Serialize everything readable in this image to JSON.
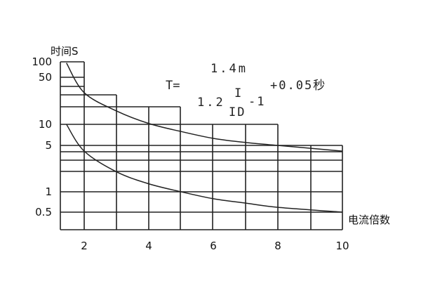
{
  "chart_data": {
    "type": "line",
    "ylabel": "时间S",
    "xlabel": "电流倍数",
    "x_ticks": [
      "2",
      "4",
      "6",
      "8",
      "10"
    ],
    "y_ticks": [
      "100",
      "50",
      "10",
      "5",
      "1",
      "0.5"
    ],
    "y_scale": "log",
    "xlim": [
      1.25,
      10
    ],
    "ylim": [
      0.3,
      100
    ],
    "grid": true,
    "formula": {
      "lhs": "T=",
      "numerator": "1.4m",
      "denominator_base": "1.2",
      "fraction_top": "I",
      "fraction_bottom": "ID",
      "denominator_tail": "-1",
      "suffix": "+0.05秒"
    },
    "series": [
      {
        "x": [
          1.45,
          2,
          3,
          4,
          5,
          6,
          7,
          8,
          10
        ],
        "y": [
          95,
          29.5,
          15.8,
          10.3,
          7.9,
          6.3,
          5.5,
          5.0,
          4.1
        ]
      },
      {
        "x": [
          1.45,
          2,
          3,
          4,
          5,
          6,
          7,
          8,
          10
        ],
        "y": [
          10,
          4.1,
          2.0,
          1.32,
          1.0,
          0.79,
          0.68,
          0.59,
          0.5
        ]
      }
    ],
    "line_color": "#222222"
  }
}
